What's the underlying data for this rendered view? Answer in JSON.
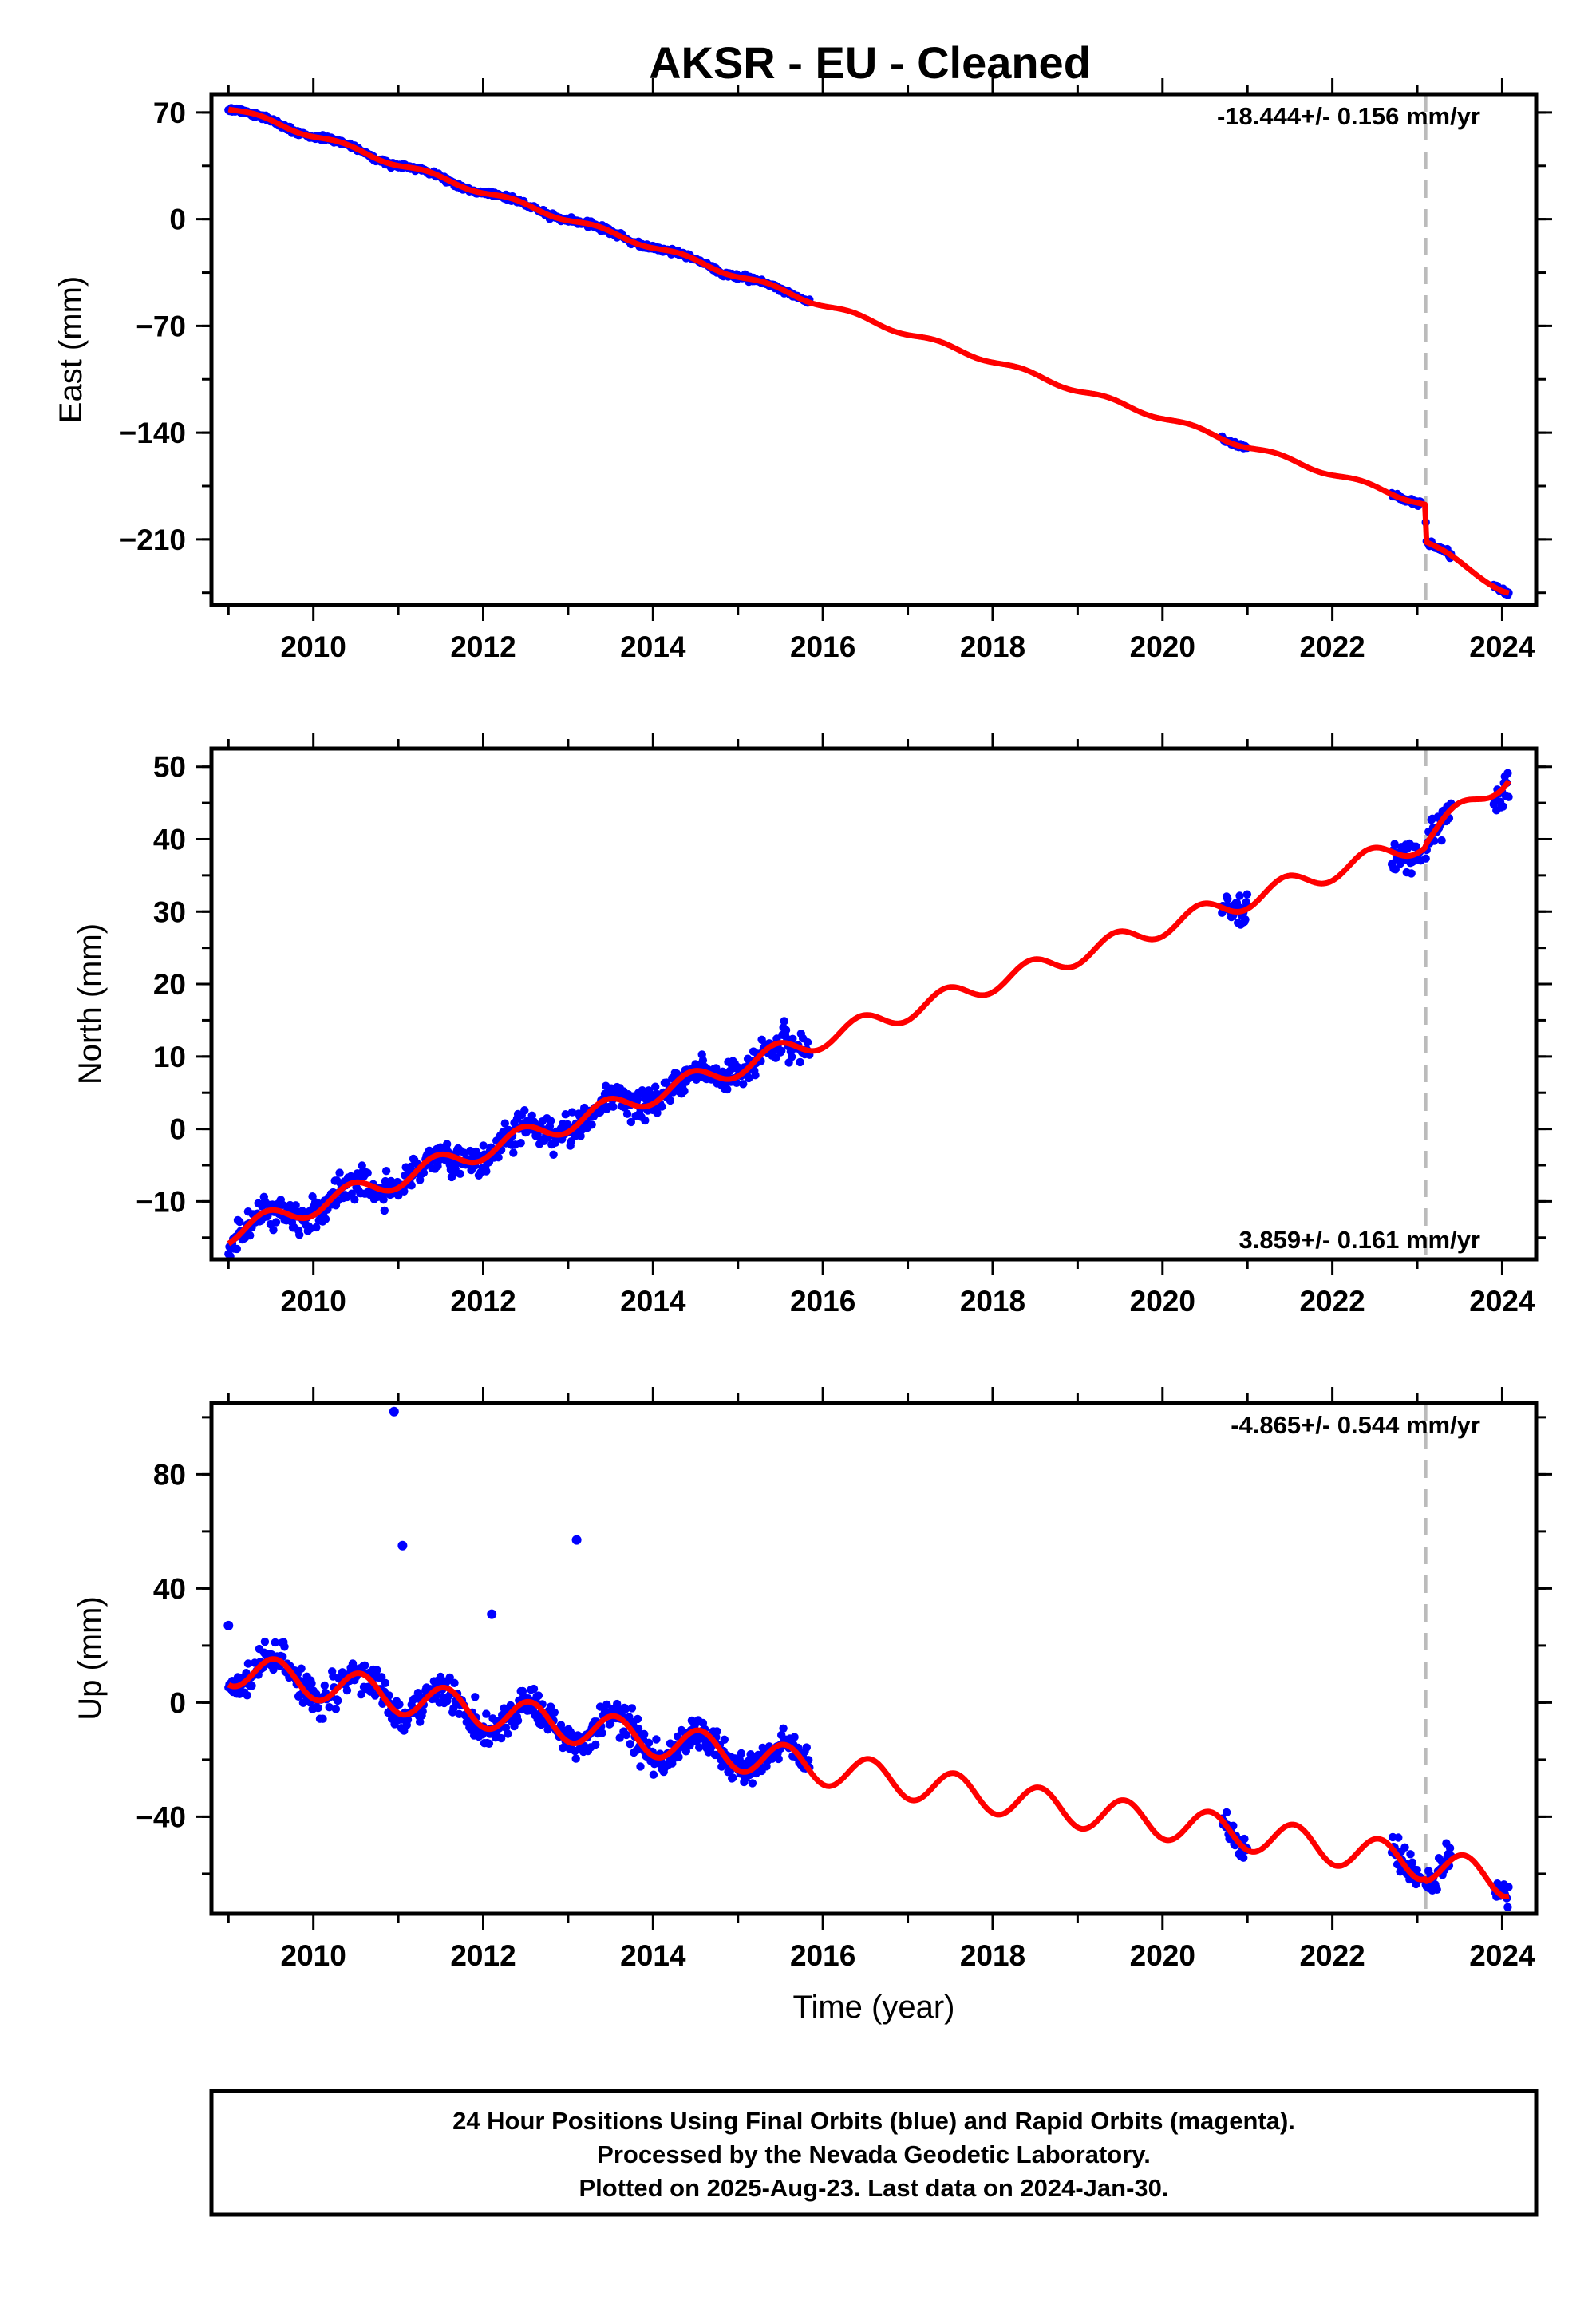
{
  "figure": {
    "title": "AKSR  - EU - Cleaned",
    "colors": {
      "data": "#0000ff",
      "model": "#ff0000",
      "event": "#bbbbbb"
    },
    "footer": [
      "24 Hour Positions Using Final Orbits (blue) and Rapid Orbits (magenta).",
      "Processed by the Nevada Geodetic Laboratory.",
      "Plotted on 2025-Aug-23. Last data on 2024-Jan-30."
    ]
  },
  "chart_data": [
    {
      "type": "scatter",
      "xlabel": "",
      "ylabel": "East (mm)",
      "xlim": [
        2008.8,
        2024.4
      ],
      "ylim": [
        -253,
        82
      ],
      "xticks": [
        "2010",
        "2012",
        "2014",
        "2016",
        "2018",
        "2020",
        "2022",
        "2024"
      ],
      "yticks": [
        "70",
        "0",
        "−70",
        "−140",
        "−210"
      ],
      "ytick_values": [
        70,
        0,
        -70,
        -140,
        -210
      ],
      "rate_label": "-18.444+/- 0.156 mm/yr",
      "rate_position": "top-right",
      "event_line_x": 2023.1,
      "data_segments": [
        [
          2009.0,
          2015.85
        ],
        [
          2020.7,
          2021.0
        ],
        [
          2022.7,
          2023.05
        ],
        [
          2023.1,
          2023.4
        ],
        [
          2023.9,
          2024.08
        ]
      ],
      "model_line": {
        "x": [
          2009.0,
          2010.0,
          2011.0,
          2012.0,
          2013.0,
          2014.0,
          2015.0,
          2016.0,
          2017.0,
          2018.0,
          2019.0,
          2020.0,
          2021.0,
          2022.0,
          2023.0,
          2023.09,
          2023.11,
          2024.0,
          2024.08
        ],
        "y": [
          73,
          55,
          36,
          18,
          0,
          -18,
          -37,
          -56,
          -75,
          -93,
          -112,
          -130,
          -149,
          -167,
          -185,
          -187,
          -212,
          -243,
          -245
        ]
      }
    },
    {
      "type": "scatter",
      "xlabel": "",
      "ylabel": "North (mm)",
      "xlim": [
        2008.8,
        2024.4
      ],
      "ylim": [
        -18,
        52.5
      ],
      "xticks": [
        "2010",
        "2012",
        "2014",
        "2016",
        "2018",
        "2020",
        "2022",
        "2024"
      ],
      "yticks": [
        "50",
        "40",
        "30",
        "20",
        "10",
        "0",
        "−10"
      ],
      "ytick_values": [
        50,
        40,
        30,
        20,
        10,
        0,
        -10
      ],
      "rate_label": "3.859+/- 0.161 mm/yr",
      "rate_position": "bottom-right",
      "event_line_x": 2023.1,
      "data_segments": [
        [
          2009.0,
          2015.85
        ],
        [
          2020.7,
          2021.0
        ],
        [
          2022.7,
          2023.05
        ],
        [
          2023.1,
          2023.4
        ],
        [
          2023.9,
          2024.08
        ]
      ],
      "model_line": {
        "x": [
          2009.0,
          2010.0,
          2011.0,
          2012.0,
          2013.0,
          2014.0,
          2015.0,
          2016.0,
          2017.0,
          2018.0,
          2019.0,
          2020.0,
          2021.0,
          2022.0,
          2023.0,
          2023.09,
          2023.11,
          2024.0,
          2024.08
        ],
        "y": [
          -14.5,
          -10.6,
          -6.8,
          -2.9,
          0.9,
          4.8,
          8.6,
          12.5,
          16.3,
          20.2,
          24.0,
          27.9,
          31.7,
          35.6,
          39.4,
          39.7,
          40.2,
          48.2,
          49.0
        ]
      }
    },
    {
      "type": "scatter",
      "xlabel": "Time (year)",
      "ylabel": "Up (mm)",
      "xlim": [
        2008.8,
        2024.4
      ],
      "ylim": [
        -74,
        105
      ],
      "xticks": [
        "2010",
        "2012",
        "2014",
        "2016",
        "2018",
        "2020",
        "2022",
        "2024"
      ],
      "yticks": [
        "80",
        "40",
        "0",
        "−40"
      ],
      "ytick_values": [
        80,
        40,
        0,
        -40
      ],
      "rate_label": "-4.865+/- 0.544 mm/yr",
      "rate_position": "top-right",
      "event_line_x": 2023.1,
      "data_segments": [
        [
          2009.0,
          2015.85
        ],
        [
          2020.7,
          2021.0
        ],
        [
          2022.7,
          2023.05
        ],
        [
          2023.1,
          2023.4
        ],
        [
          2023.9,
          2024.08
        ]
      ],
      "outliers": [
        [
          2010.95,
          102
        ],
        [
          2011.05,
          55
        ],
        [
          2013.1,
          57
        ],
        [
          2012.1,
          31
        ],
        [
          2009.0,
          27
        ]
      ],
      "model_line": {
        "x": [
          2009.0,
          2010.0,
          2011.0,
          2012.0,
          2013.0,
          2014.0,
          2015.0,
          2016.0,
          2017.0,
          2018.0,
          2019.0,
          2020.0,
          2021.0,
          2022.0,
          2023.0,
          2023.09,
          2023.11,
          2024.0,
          2024.08
        ],
        "y": [
          12,
          7,
          2,
          -3,
          -8,
          -13,
          -18,
          -23,
          -28,
          -33,
          -38,
          -42,
          -46,
          -51,
          -56,
          -56,
          -57,
          -62,
          -62
        ]
      }
    }
  ]
}
